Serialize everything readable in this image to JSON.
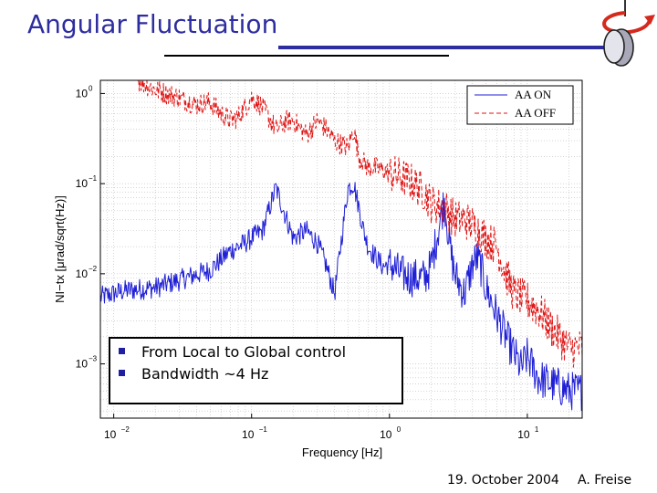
{
  "slide": {
    "title": "Angular Fluctuation",
    "footer_date": "19. October 2004",
    "footer_author": "A. Freise"
  },
  "note_box": {
    "bullets": [
      "From Local to Global control",
      "Bandwidth ~4 Hz"
    ]
  },
  "colors": {
    "title": "#2d2d9f",
    "aa_on": "#1f1fd6",
    "aa_off": "#e01616",
    "bullet": "#1f1f9f"
  },
  "icons": [
    "rotation-arrow-icon",
    "mirror-icon"
  ],
  "chart_data": {
    "type": "line",
    "xscale": "log",
    "yscale": "log",
    "xlim": [
      0.008,
      25
    ],
    "ylim": [
      0.00025,
      1.4
    ],
    "xlabel": "Frequency [Hz]",
    "ylabel": "NI−tx [μrad/sqrt(Hz)]",
    "x_ticks": [
      {
        "value": 0.01,
        "base": "10",
        "exp": "−2"
      },
      {
        "value": 0.1,
        "base": "10",
        "exp": "−1"
      },
      {
        "value": 1,
        "base": "10",
        "exp": "0"
      },
      {
        "value": 10,
        "base": "10",
        "exp": "1"
      }
    ],
    "y_ticks": [
      {
        "value": 0.001,
        "base": "10",
        "exp": "−3"
      },
      {
        "value": 0.01,
        "base": "10",
        "exp": "−2"
      },
      {
        "value": 0.1,
        "base": "10",
        "exp": "−1"
      },
      {
        "value": 1,
        "base": "10",
        "exp": "0"
      }
    ],
    "legend": {
      "position": "top-right",
      "entries": [
        "AA ON",
        "AA OFF"
      ]
    },
    "grid": true,
    "series": [
      {
        "name": "AA ON",
        "style": "solid",
        "x": [
          0.008,
          0.012,
          0.02,
          0.03,
          0.05,
          0.07,
          0.09,
          0.1,
          0.12,
          0.15,
          0.2,
          0.25,
          0.3,
          0.35,
          0.4,
          0.45,
          0.5,
          0.55,
          0.6,
          0.65,
          0.7,
          0.8,
          0.9,
          1.0,
          1.2,
          1.5,
          1.8,
          2.0,
          2.3,
          2.5,
          2.8,
          3.0,
          3.5,
          4.0,
          4.3,
          4.6,
          5.0,
          6.0,
          7.0,
          8.0,
          9.0,
          10.0,
          12.0,
          15.0,
          20.0,
          25.0
        ],
        "y": [
          0.0055,
          0.0065,
          0.007,
          0.0085,
          0.011,
          0.018,
          0.022,
          0.025,
          0.03,
          0.09,
          0.025,
          0.03,
          0.022,
          0.012,
          0.006,
          0.025,
          0.09,
          0.1,
          0.055,
          0.03,
          0.02,
          0.015,
          0.012,
          0.013,
          0.01,
          0.009,
          0.009,
          0.012,
          0.035,
          0.065,
          0.016,
          0.0095,
          0.006,
          0.0125,
          0.015,
          0.012,
          0.007,
          0.0035,
          0.002,
          0.0013,
          0.0009,
          0.0012,
          0.0007,
          0.0006,
          0.0005,
          0.0005
        ]
      },
      {
        "name": "AA OFF",
        "style": "dashed",
        "x": [
          0.015,
          0.02,
          0.03,
          0.04,
          0.05,
          0.06,
          0.07,
          0.08,
          0.1,
          0.12,
          0.15,
          0.18,
          0.2,
          0.25,
          0.3,
          0.35,
          0.4,
          0.5,
          0.55,
          0.6,
          0.7,
          0.8,
          0.9,
          1.0,
          1.2,
          1.5,
          1.8,
          2.0,
          2.5,
          3.0,
          3.5,
          4.0,
          5.0,
          6.0,
          7.0,
          8.0,
          10.0,
          12.0,
          15.0,
          20.0,
          25.0
        ],
        "y": [
          1.4,
          1.1,
          0.9,
          0.75,
          0.8,
          0.6,
          0.5,
          0.55,
          0.9,
          0.7,
          0.4,
          0.5,
          0.5,
          0.35,
          0.5,
          0.4,
          0.3,
          0.25,
          0.4,
          0.2,
          0.15,
          0.15,
          0.14,
          0.13,
          0.12,
          0.1,
          0.08,
          0.06,
          0.055,
          0.04,
          0.04,
          0.035,
          0.025,
          0.02,
          0.01,
          0.006,
          0.005,
          0.004,
          0.0025,
          0.0015,
          0.0015
        ]
      }
    ]
  }
}
